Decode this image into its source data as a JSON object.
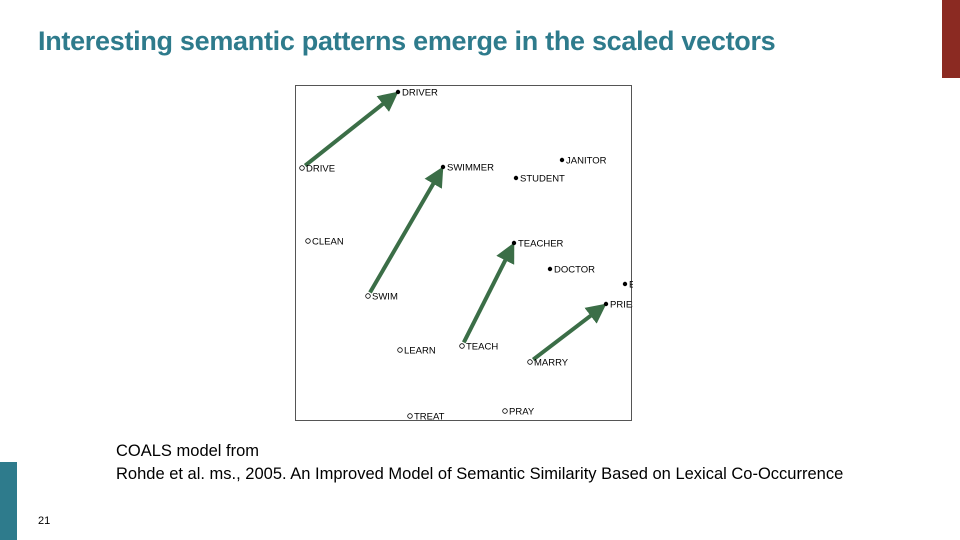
{
  "slide": {
    "title": "Interesting semantic patterns emerge in the scaled vectors",
    "caption_line1": "COALS model from",
    "caption_line2": "Rohde et al. ms., 2005. An Improved Model of Semantic Similarity Based on Lexical Co-Occurrence",
    "slide_number": "21",
    "accent_top_color": "#8b2a22",
    "accent_bottom_color": "#2e7b8c",
    "title_color": "#2e7b8c"
  },
  "figure": {
    "arrow_color": "#3b6e47",
    "points": [
      {
        "id": "driver",
        "label": "DRIVER",
        "kind": "filled"
      },
      {
        "id": "drive",
        "label": "DRIVE",
        "kind": "open"
      },
      {
        "id": "swimmer",
        "label": "SWIMMER",
        "kind": "filled"
      },
      {
        "id": "janitor",
        "label": "JANITOR",
        "kind": "filled"
      },
      {
        "id": "student",
        "label": "STUDENT",
        "kind": "filled"
      },
      {
        "id": "clean",
        "label": "CLEAN",
        "kind": "open"
      },
      {
        "id": "teacher",
        "label": "TEACHER",
        "kind": "filled"
      },
      {
        "id": "doctor",
        "label": "DOCTOR",
        "kind": "filled"
      },
      {
        "id": "bride",
        "label": "BRIDE",
        "kind": "filled"
      },
      {
        "id": "swim",
        "label": "SWIM",
        "kind": "open"
      },
      {
        "id": "priest",
        "label": "PRIEST",
        "kind": "filled"
      },
      {
        "id": "teach",
        "label": "TEACH",
        "kind": "open"
      },
      {
        "id": "learn",
        "label": "LEARN",
        "kind": "open"
      },
      {
        "id": "marry",
        "label": "MARRY",
        "kind": "open"
      },
      {
        "id": "pray",
        "label": "PRAY",
        "kind": "open"
      },
      {
        "id": "treat",
        "label": "TREAT",
        "kind": "open"
      }
    ],
    "arrows": [
      {
        "from": "drive",
        "to": "driver"
      },
      {
        "from": "swim",
        "to": "swimmer"
      },
      {
        "from": "teach",
        "to": "teacher"
      },
      {
        "from": "marry",
        "to": "priest"
      }
    ]
  }
}
